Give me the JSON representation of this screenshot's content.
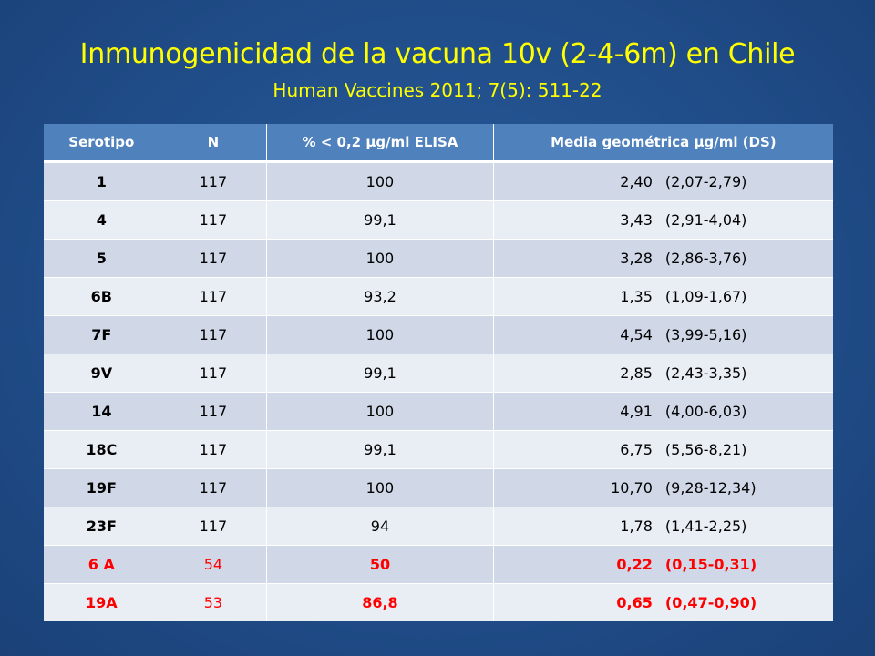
{
  "slide": {
    "title": "Inmunogenicidad de la vacuna 10v (2-4-6m) en Chile",
    "subtitle": "Human Vaccines 2011; 7(5): 511-22"
  },
  "colors": {
    "background": "#1f4b86",
    "title": "#ffff00",
    "header_bg": "#4f81bd",
    "row_odd": "#d0d8e8",
    "row_even": "#e9edf4",
    "highlight": "#ff0000"
  },
  "table": {
    "headers": [
      "Serotipo",
      "N",
      "% < 0,2 µg/ml ELISA",
      "Media geométrica µg/ml (DS)"
    ],
    "rows": [
      {
        "serotipo": "1",
        "n": "117",
        "pct": "100",
        "mean": "2,40",
        "ci": "(2,07-2,79)"
      },
      {
        "serotipo": "4",
        "n": "117",
        "pct": "99,1",
        "mean": "3,43",
        "ci": "(2,91-4,04)"
      },
      {
        "serotipo": "5",
        "n": "117",
        "pct": "100",
        "mean": "3,28",
        "ci": "(2,86-3,76)"
      },
      {
        "serotipo": "6B",
        "n": "117",
        "pct": "93,2",
        "mean": "1,35",
        "ci": "(1,09-1,67)"
      },
      {
        "serotipo": "7F",
        "n": "117",
        "pct": "100",
        "mean": "4,54",
        "ci": "(3,99-5,16)"
      },
      {
        "serotipo": "9V",
        "n": "117",
        "pct": "99,1",
        "mean": "2,85",
        "ci": "(2,43-3,35)"
      },
      {
        "serotipo": "14",
        "n": "117",
        "pct": "100",
        "mean": "4,91",
        "ci": "(4,00-6,03)"
      },
      {
        "serotipo": "18C",
        "n": "117",
        "pct": "99,1",
        "mean": "6,75",
        "ci": "(5,56-8,21)"
      },
      {
        "serotipo": "19F",
        "n": "117",
        "pct": "100",
        "mean": "10,70",
        "ci": "(9,28-12,34)"
      },
      {
        "serotipo": "23F",
        "n": "117",
        "pct": "94",
        "mean": "1,78",
        "ci": "(1,41-2,25)"
      },
      {
        "serotipo": "6 A",
        "n": "54",
        "pct": "50",
        "mean": "0,22",
        "ci": "(0,15-0,31)"
      },
      {
        "serotipo": "19A",
        "n": "53",
        "pct": "86,8",
        "mean": "0,65",
        "ci": "(0,47-0,90)"
      }
    ]
  }
}
